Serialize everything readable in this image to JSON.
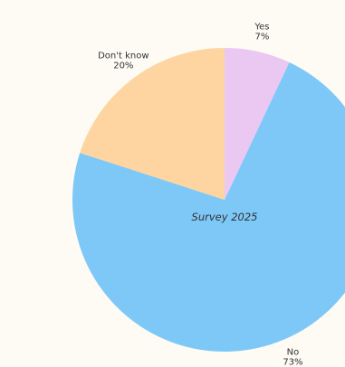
{
  "chart_data": {
    "type": "pie",
    "categories": [
      "Yes",
      "No",
      "Don't know"
    ],
    "values": [
      7,
      73,
      20
    ],
    "percent_labels": [
      "7%",
      "73%",
      "20%"
    ],
    "colors": [
      "#ebc8f2",
      "#7ec8f8",
      "#fed5a0"
    ],
    "center_label": "Survey 2025",
    "start_angle_deg": 0,
    "direction": "clockwise"
  }
}
